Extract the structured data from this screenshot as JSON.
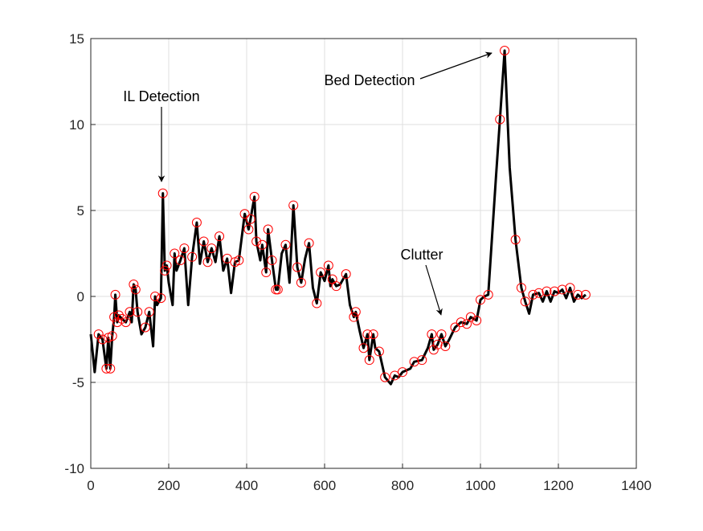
{
  "chart_data": {
    "type": "line",
    "xlim": [
      0,
      1400
    ],
    "xticks": [
      0,
      200,
      400,
      600,
      800,
      1000,
      1200,
      1400
    ],
    "ylim": [
      -10,
      15
    ],
    "yticks": [
      -10,
      -5,
      0,
      5,
      10,
      15
    ],
    "grid": true,
    "annotations": [
      "IL Detection",
      "Bed Detection",
      "Clutter"
    ],
    "series": [
      {
        "mode": "line",
        "color": "#000000",
        "x": [
          0,
          10,
          20,
          30,
          40,
          45,
          50,
          55,
          60,
          63,
          68,
          72,
          80,
          90,
          100,
          105,
          110,
          115,
          120,
          130,
          140,
          150,
          160,
          165,
          170,
          180,
          185,
          190,
          195,
          200,
          210,
          215,
          220,
          230,
          240,
          250,
          260,
          272,
          280,
          290,
          300,
          310,
          320,
          330,
          340,
          350,
          360,
          370,
          380,
          395,
          405,
          410,
          420,
          425,
          435,
          440,
          450,
          455,
          465,
          475,
          480,
          490,
          500,
          510,
          520,
          530,
          540,
          550,
          560,
          570,
          580,
          590,
          600,
          610,
          615,
          620,
          630,
          640,
          655,
          665,
          675,
          680,
          690,
          700,
          710,
          715,
          725,
          730,
          740,
          755,
          770,
          780,
          790,
          800,
          820,
          830,
          850,
          865,
          875,
          880,
          890,
          900,
          910,
          920,
          935,
          950,
          965,
          975,
          990,
          1000,
          1010,
          1020,
          1040,
          1050,
          1062,
          1075,
          1090,
          1105,
          1115,
          1125,
          1135,
          1150,
          1160,
          1170,
          1180,
          1190,
          1200,
          1210,
          1220,
          1230,
          1240,
          1250,
          1260,
          1270
        ],
        "values": [
          -2.2,
          -4.4,
          -2.2,
          -2.5,
          -4.2,
          -2.4,
          -4.2,
          -2.3,
          -1.2,
          0.1,
          -1.5,
          -1.1,
          -1.3,
          -1.5,
          -0.9,
          -1.5,
          0.7,
          0.4,
          -0.9,
          -2.2,
          -1.8,
          -0.9,
          -2.9,
          0,
          -0.5,
          -0.1,
          6.0,
          1.5,
          1.8,
          0.8,
          -0.5,
          2.5,
          1.5,
          2.1,
          2.8,
          -0.5,
          2.3,
          4.3,
          1.9,
          3.2,
          2.0,
          2.8,
          2.0,
          3.5,
          1.5,
          2.2,
          0.2,
          2.0,
          2.1,
          4.8,
          3.9,
          4.5,
          5.8,
          3.2,
          2.1,
          3.0,
          1.4,
          3.9,
          2.1,
          0.4,
          0.4,
          2.5,
          3.0,
          0.8,
          5.3,
          1.7,
          0.8,
          2.2,
          3.1,
          0.5,
          -0.4,
          1.4,
          0.9,
          1.8,
          0.6,
          1.0,
          0.6,
          0.7,
          1.3,
          -0.5,
          -1.2,
          -0.9,
          -2.0,
          -3.0,
          -2.2,
          -3.7,
          -2.2,
          -3.0,
          -3.2,
          -4.7,
          -5.1,
          -4.6,
          -4.7,
          -4.4,
          -4.2,
          -3.8,
          -3.7,
          -3.0,
          -2.2,
          -3.1,
          -2.8,
          -2.2,
          -2.9,
          -2.5,
          -1.8,
          -1.5,
          -1.6,
          -1.2,
          -1.4,
          -0.2,
          0,
          0.1,
          7.0,
          10.3,
          14.3,
          7.5,
          3.3,
          0.5,
          -0.3,
          -1.0,
          0.1,
          0.2,
          -0.3,
          0.3,
          -0.3,
          0.3,
          0.2,
          0.4,
          -0.1,
          0.5,
          -0.3,
          0.1,
          -0.1,
          0.1
        ]
      },
      {
        "mode": "markers",
        "color": "#ff0000",
        "x": [
          20,
          30,
          40,
          45,
          50,
          55,
          60,
          63,
          68,
          72,
          80,
          90,
          100,
          110,
          115,
          120,
          140,
          150,
          165,
          180,
          185,
          190,
          195,
          215,
          230,
          240,
          260,
          272,
          290,
          300,
          310,
          330,
          350,
          370,
          380,
          395,
          405,
          410,
          420,
          425,
          440,
          450,
          455,
          465,
          475,
          480,
          500,
          520,
          530,
          540,
          560,
          580,
          590,
          610,
          620,
          630,
          655,
          675,
          680,
          700,
          710,
          715,
          725,
          740,
          755,
          780,
          800,
          830,
          850,
          875,
          880,
          890,
          900,
          910,
          935,
          950,
          965,
          975,
          990,
          1000,
          1020,
          1050,
          1062,
          1090,
          1105,
          1115,
          1135,
          1150,
          1170,
          1190,
          1210,
          1230,
          1250,
          1270
        ],
        "values": [
          -2.2,
          -2.5,
          -4.2,
          -2.4,
          -4.2,
          -2.3,
          -1.2,
          0.1,
          -1.5,
          -1.1,
          -1.3,
          -1.5,
          -0.9,
          0.7,
          0.4,
          -0.9,
          -1.8,
          -0.9,
          0,
          -0.1,
          6.0,
          1.5,
          1.8,
          2.5,
          2.1,
          2.8,
          2.3,
          4.3,
          3.2,
          2.0,
          2.8,
          3.5,
          2.2,
          2.0,
          2.1,
          4.8,
          3.9,
          4.5,
          5.8,
          3.2,
          3.0,
          1.4,
          3.9,
          2.1,
          0.4,
          0.4,
          3.0,
          5.3,
          1.7,
          0.8,
          3.1,
          -0.4,
          1.4,
          1.8,
          1.0,
          0.6,
          1.3,
          -1.2,
          -0.9,
          -3.0,
          -2.2,
          -3.7,
          -2.2,
          -3.2,
          -4.7,
          -4.6,
          -4.4,
          -3.8,
          -3.7,
          -2.2,
          -3.1,
          -2.8,
          -2.2,
          -2.9,
          -1.8,
          -1.5,
          -1.6,
          -1.2,
          -1.4,
          -0.2,
          0.1,
          10.3,
          14.3,
          3.3,
          0.5,
          -0.3,
          0.1,
          0.2,
          0.3,
          0.3,
          0.4,
          0.5,
          0.1,
          0.1
        ]
      }
    ]
  }
}
